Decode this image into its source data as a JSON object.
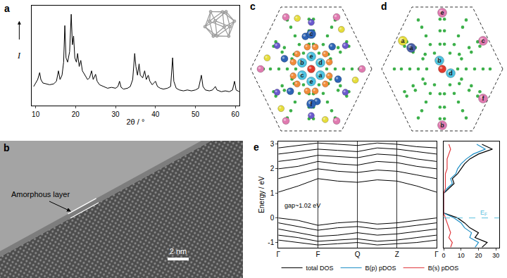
{
  "chart_data": [
    {
      "panel": "a",
      "type": "line",
      "xlabel": "2θ / °",
      "ylabel": "I",
      "color": "#000000",
      "x": [
        9.5,
        10,
        10.5,
        11,
        11.3,
        11.8,
        12.5,
        13.5,
        14.5,
        15.2,
        15.7,
        16.1,
        16.6,
        17.0,
        17.3,
        17.6,
        18.0,
        18.5,
        18.9,
        19.2,
        19.5,
        19.8,
        20.2,
        20.5,
        20.9,
        21.3,
        21.7,
        22.3,
        23.0,
        23.5,
        24.0,
        24.4,
        25.0,
        25.4,
        26.0,
        27.0,
        28.0,
        29.0,
        30.0,
        30.6,
        31.0,
        31.4,
        32.0,
        33.0,
        33.7,
        34.3,
        34.8,
        35.1,
        35.5,
        35.9,
        36.2,
        36.8,
        37.3,
        37.7,
        38.2,
        38.6,
        39.2,
        40.0,
        40.5,
        41.2,
        42.0,
        43.0,
        43.8,
        44.3,
        44.6,
        45.2,
        46.0,
        47.0,
        48.0,
        49.0,
        50.0,
        50.8,
        51.5,
        51.9,
        52.5,
        53.5,
        54.3,
        55.0,
        55.4,
        56.5,
        57.5,
        58.5,
        59.3,
        59.8,
        60.2,
        61
      ],
      "values": [
        22,
        26,
        30,
        38,
        30,
        26,
        25,
        24,
        25,
        28,
        40,
        30,
        35,
        50,
        92,
        55,
        50,
        62,
        105,
        70,
        80,
        55,
        50,
        60,
        45,
        52,
        40,
        35,
        30,
        32,
        40,
        30,
        36,
        28,
        24,
        22,
        20,
        21,
        20,
        22,
        28,
        21,
        19,
        20,
        22,
        30,
        60,
        45,
        35,
        48,
        35,
        32,
        40,
        30,
        35,
        28,
        24,
        28,
        22,
        20,
        19,
        20,
        22,
        55,
        28,
        20,
        18,
        17,
        18,
        17,
        18,
        20,
        35,
        22,
        18,
        17,
        18,
        22,
        18,
        16,
        17,
        16,
        18,
        28,
        18,
        16
      ],
      "xlim": [
        9,
        61
      ],
      "xticks": [
        10,
        20,
        30,
        40,
        50,
        60
      ],
      "ylim": [
        0,
        115
      ],
      "tick_labels": "x"
    },
    {
      "panel": "e",
      "type": "line",
      "ylabel": "Energy / eV",
      "annotation": "gap~1.02 eV",
      "grid": true,
      "x": [
        0,
        0.5,
        1,
        1.5,
        2,
        2.5,
        3,
        3.5,
        4
      ],
      "series": [
        {
          "color": "#000000",
          "values": [
            0,
            -0.1,
            -0.3,
            -0.2,
            -0.15,
            -0.25,
            -0.2,
            -0.1,
            0
          ]
        },
        {
          "color": "#000000",
          "values": [
            -0.2,
            -0.35,
            -0.5,
            -0.4,
            -0.35,
            -0.45,
            -0.4,
            -0.3,
            -0.2
          ]
        },
        {
          "color": "#000000",
          "values": [
            -0.45,
            -0.6,
            -0.75,
            -0.7,
            -0.6,
            -0.7,
            -0.65,
            -0.55,
            -0.45
          ]
        },
        {
          "color": "#000000",
          "values": [
            -0.7,
            -0.8,
            -0.95,
            -0.9,
            -0.85,
            -0.95,
            -0.9,
            -0.8,
            -0.7
          ]
        },
        {
          "color": "#000000",
          "values": [
            -0.9,
            -1.0,
            -1.1,
            -1.05,
            -1.0,
            -1.1,
            -1.05,
            -1.0,
            -0.9
          ]
        },
        {
          "color": "#000000",
          "values": [
            1.05,
            1.3,
            1.6,
            1.5,
            1.45,
            1.55,
            1.5,
            1.3,
            1.05
          ]
        },
        {
          "color": "#000000",
          "values": [
            1.6,
            1.8,
            2.0,
            1.9,
            1.85,
            1.95,
            1.9,
            1.75,
            1.6
          ]
        },
        {
          "color": "#000000",
          "values": [
            2.0,
            2.1,
            2.3,
            2.2,
            2.15,
            2.3,
            2.25,
            2.1,
            2.0
          ]
        },
        {
          "color": "#000000",
          "values": [
            2.3,
            2.4,
            2.55,
            2.5,
            2.45,
            2.6,
            2.55,
            2.4,
            2.3
          ]
        },
        {
          "color": "#000000",
          "values": [
            2.6,
            2.7,
            2.8,
            2.75,
            2.7,
            2.85,
            2.8,
            2.7,
            2.6
          ]
        },
        {
          "color": "#000000",
          "values": [
            2.85,
            2.95,
            3.05,
            3.0,
            2.95,
            3.05,
            3.0,
            2.9,
            2.85
          ]
        }
      ],
      "xlim": [
        0,
        4
      ],
      "xticks": [
        {
          "value": 0,
          "label": "Γ"
        },
        {
          "value": 1,
          "label": "F"
        },
        {
          "value": 2,
          "label": "Q"
        },
        {
          "value": 3,
          "label": "Z"
        },
        {
          "value": 4,
          "label": "Γ"
        }
      ],
      "ylim": [
        -1.2,
        3.1
      ],
      "yticks": [
        -1,
        0,
        1,
        2,
        3
      ]
    },
    {
      "panel": "e",
      "type": "line",
      "orientation": "horizontal",
      "legend": "bottom",
      "tick_labels": "x",
      "y": [
        -1.2,
        -1.0,
        -0.8,
        -0.6,
        -0.4,
        -0.2,
        0,
        0.2,
        0.4,
        0.6,
        0.8,
        1.0,
        1.2,
        1.4,
        1.6,
        1.8,
        2.0,
        2.2,
        2.4,
        2.6,
        2.8,
        3.0
      ],
      "series": [
        {
          "name": "total DOS",
          "color": "#000000",
          "values": [
            22,
            25,
            18,
            20,
            15,
            12,
            8,
            0,
            0,
            0,
            0,
            0,
            3,
            6,
            5,
            8,
            10,
            12,
            15,
            20,
            28,
            22
          ]
        },
        {
          "name": "B(p) pDOS",
          "color": "#1e8fc6",
          "values": [
            18,
            20,
            15,
            16,
            12,
            10,
            6,
            0,
            0,
            0,
            0,
            0,
            2,
            5,
            4,
            7,
            8,
            10,
            13,
            17,
            24,
            19
          ]
        },
        {
          "name": "B(s) pDOS",
          "color": "#e0393e",
          "values": [
            4,
            5,
            3,
            4,
            3,
            2,
            1,
            0,
            0,
            0,
            0,
            0,
            1,
            1,
            1,
            1,
            2,
            2,
            2,
            3,
            4,
            3
          ]
        }
      ],
      "fermi_level": {
        "label": "EF",
        "value": 0
      },
      "xlim": [
        0,
        32
      ],
      "xticks": [
        0,
        10,
        20,
        30
      ],
      "ylim": [
        -1.2,
        3.1
      ]
    }
  ],
  "tem_image": {
    "panel": "b",
    "annotation": "Amorphous layer",
    "scale_bar": "2 nm"
  },
  "structures": [
    {
      "panel": "c",
      "labels": [
        "e",
        "d",
        "a",
        "e",
        "c",
        "b",
        "c",
        "f"
      ]
    },
    {
      "panel": "d",
      "labels": [
        "e",
        "a",
        "a",
        "c",
        "b",
        "d",
        "f",
        "b"
      ]
    }
  ]
}
